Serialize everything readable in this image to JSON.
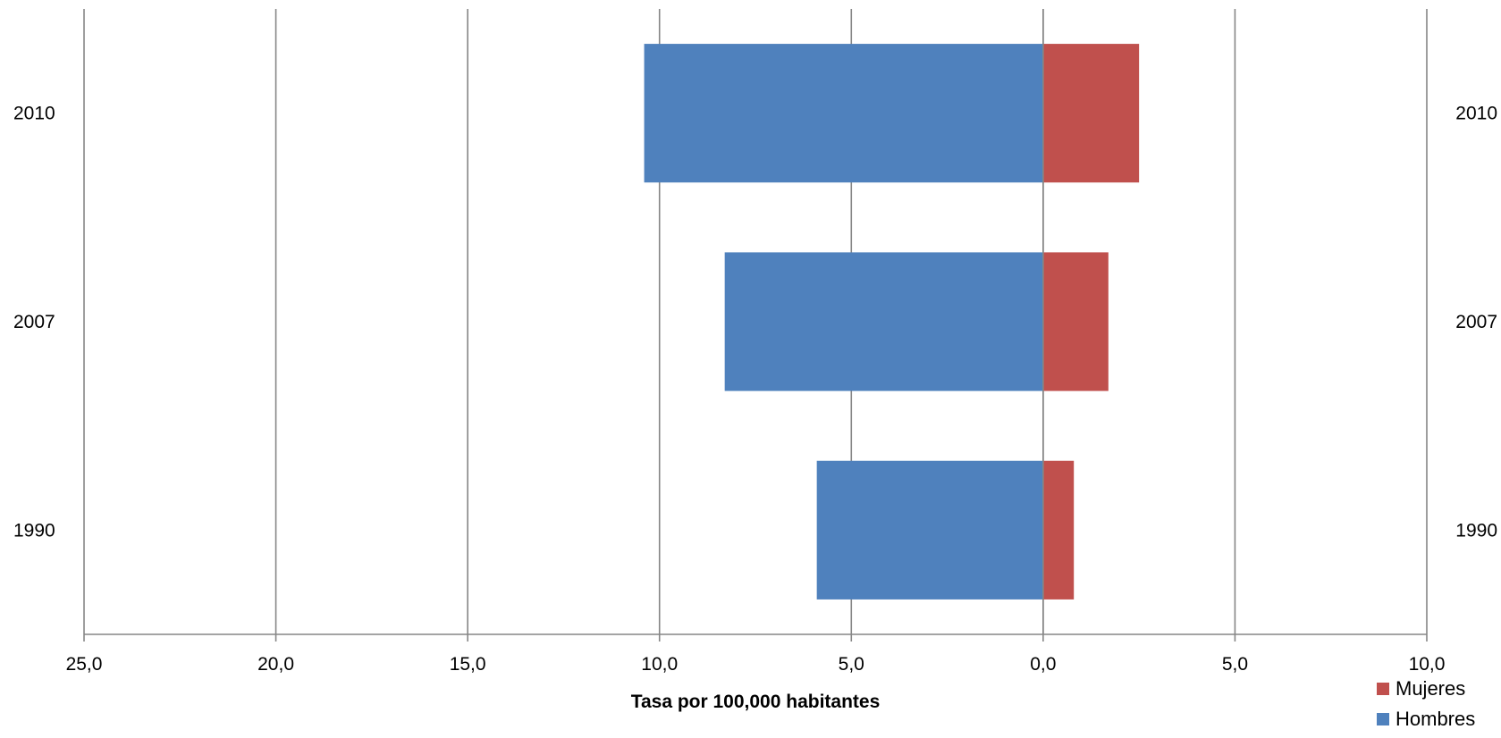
{
  "chart_data": {
    "type": "bar",
    "orientation": "horizontal",
    "title": "",
    "xlabel": "Tasa por 100,000 habitantes",
    "ylabel": "",
    "categories": [
      "2010",
      "2007",
      "1990"
    ],
    "series": [
      {
        "name": "Hombres",
        "values": [
          10.4,
          8.3,
          5.9
        ],
        "color": "#4F81BD",
        "side": "left"
      },
      {
        "name": "Mujeres",
        "values": [
          2.5,
          1.7,
          0.8
        ],
        "color": "#C0504D",
        "side": "right"
      }
    ],
    "xlim": [
      -25,
      10
    ],
    "x_ticks": [
      -25,
      -20,
      -15,
      -10,
      -5,
      0,
      5,
      10
    ],
    "x_tick_labels": [
      "25,0",
      "20,0",
      "15,0",
      "10,0",
      "5,0",
      "0,0",
      "5,0",
      "10,0"
    ],
    "category_labels_both_sides": true,
    "grid": true,
    "legend": {
      "position": "bottom-right",
      "items": [
        {
          "name": "Mujeres",
          "color": "#C0504D"
        },
        {
          "name": "Hombres",
          "color": "#4F81BD"
        }
      ]
    },
    "colors": {
      "grid": "#868686",
      "axis": "#868686"
    }
  }
}
